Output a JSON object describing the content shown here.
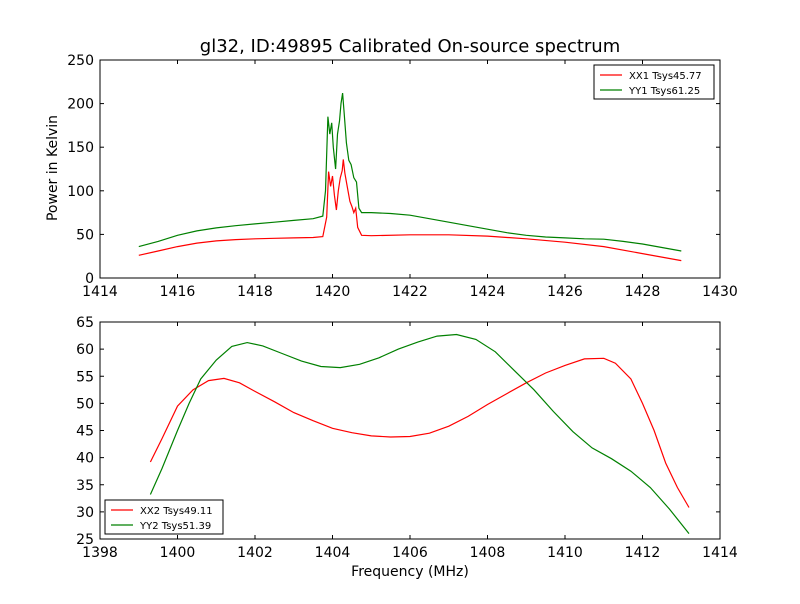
{
  "chart_data": [
    {
      "type": "line",
      "title": "gl32, ID:49895 Calibrated On-source spectrum",
      "xlabel": "",
      "ylabel": "Power in Kelvin",
      "xlim": [
        1414,
        1430
      ],
      "ylim": [
        0,
        250
      ],
      "xticks": [
        1414,
        1416,
        1418,
        1420,
        1422,
        1424,
        1426,
        1428,
        1430
      ],
      "yticks": [
        0,
        50,
        100,
        150,
        200,
        250
      ],
      "legend_position": "top-right",
      "series": [
        {
          "name": "XX1 Tsys45.77",
          "color": "#ff0000",
          "points": [
            [
              1415.0,
              26
            ],
            [
              1415.5,
              31
            ],
            [
              1416.0,
              36
            ],
            [
              1416.5,
              40
            ],
            [
              1417.0,
              42.5
            ],
            [
              1417.5,
              44
            ],
            [
              1418.0,
              45
            ],
            [
              1418.5,
              45.5
            ],
            [
              1419.0,
              46
            ],
            [
              1419.5,
              46.5
            ],
            [
              1419.75,
              47.5
            ],
            [
              1419.85,
              70
            ],
            [
              1419.9,
              122
            ],
            [
              1419.95,
              105
            ],
            [
              1420.0,
              117
            ],
            [
              1420.05,
              95
            ],
            [
              1420.1,
              78
            ],
            [
              1420.15,
              100
            ],
            [
              1420.2,
              115
            ],
            [
              1420.25,
              123
            ],
            [
              1420.28,
              136
            ],
            [
              1420.32,
              120
            ],
            [
              1420.38,
              105
            ],
            [
              1420.45,
              88
            ],
            [
              1420.5,
              82
            ],
            [
              1420.55,
              75
            ],
            [
              1420.6,
              80
            ],
            [
              1420.65,
              58
            ],
            [
              1420.75,
              49
            ],
            [
              1421.0,
              48.5
            ],
            [
              1422.0,
              49.5
            ],
            [
              1423.0,
              49.5
            ],
            [
              1424.0,
              48
            ],
            [
              1425.0,
              45
            ],
            [
              1426.0,
              41
            ],
            [
              1427.0,
              36
            ],
            [
              1428.0,
              28
            ],
            [
              1429.0,
              20
            ]
          ]
        },
        {
          "name": "YY1 Tsys61.25",
          "color": "#008000",
          "points": [
            [
              1415.0,
              36
            ],
            [
              1415.5,
              42
            ],
            [
              1416.0,
              49
            ],
            [
              1416.5,
              54
            ],
            [
              1417.0,
              57.5
            ],
            [
              1417.5,
              60
            ],
            [
              1418.0,
              62
            ],
            [
              1418.5,
              64
            ],
            [
              1419.0,
              66
            ],
            [
              1419.5,
              68
            ],
            [
              1419.75,
              71
            ],
            [
              1419.82,
              100
            ],
            [
              1419.88,
              185
            ],
            [
              1419.93,
              165
            ],
            [
              1419.98,
              178
            ],
            [
              1420.02,
              150
            ],
            [
              1420.08,
              125
            ],
            [
              1420.13,
              165
            ],
            [
              1420.18,
              180
            ],
            [
              1420.22,
              200
            ],
            [
              1420.26,
              212
            ],
            [
              1420.3,
              190
            ],
            [
              1420.36,
              155
            ],
            [
              1420.42,
              135
            ],
            [
              1420.48,
              130
            ],
            [
              1420.55,
              115
            ],
            [
              1420.62,
              110
            ],
            [
              1420.68,
              80
            ],
            [
              1420.75,
              75
            ],
            [
              1421.0,
              75
            ],
            [
              1421.5,
              74
            ],
            [
              1422.0,
              72
            ],
            [
              1422.5,
              68
            ],
            [
              1423.0,
              64
            ],
            [
              1423.5,
              60
            ],
            [
              1424.0,
              56
            ],
            [
              1424.5,
              52
            ],
            [
              1425.0,
              49
            ],
            [
              1425.5,
              47
            ],
            [
              1426.0,
              46
            ],
            [
              1426.5,
              45
            ],
            [
              1427.0,
              44.5
            ],
            [
              1427.5,
              42
            ],
            [
              1428.0,
              39
            ],
            [
              1428.5,
              35
            ],
            [
              1429.0,
              31
            ]
          ]
        }
      ]
    },
    {
      "type": "line",
      "title": "",
      "xlabel": "Frequency (MHz)",
      "ylabel": "",
      "xlim": [
        1398,
        1414
      ],
      "ylim": [
        25,
        65
      ],
      "xticks": [
        1398,
        1400,
        1402,
        1404,
        1406,
        1408,
        1410,
        1412,
        1414
      ],
      "yticks": [
        25,
        30,
        35,
        40,
        45,
        50,
        55,
        60,
        65
      ],
      "legend_position": "bottom-left",
      "series": [
        {
          "name": "XX2 Tsys49.11",
          "color": "#ff0000",
          "points": [
            [
              1399.3,
              39.2
            ],
            [
              1399.6,
              43.5
            ],
            [
              1400.0,
              49.5
            ],
            [
              1400.4,
              52.5
            ],
            [
              1400.8,
              54.2
            ],
            [
              1401.2,
              54.6
            ],
            [
              1401.6,
              53.8
            ],
            [
              1402.0,
              52.2
            ],
            [
              1402.5,
              50.3
            ],
            [
              1403.0,
              48.3
            ],
            [
              1403.5,
              46.8
            ],
            [
              1404.0,
              45.4
            ],
            [
              1404.5,
              44.6
            ],
            [
              1405.0,
              44.0
            ],
            [
              1405.5,
              43.8
            ],
            [
              1406.0,
              43.9
            ],
            [
              1406.5,
              44.5
            ],
            [
              1407.0,
              45.8
            ],
            [
              1407.5,
              47.6
            ],
            [
              1408.0,
              49.8
            ],
            [
              1408.5,
              51.8
            ],
            [
              1409.0,
              53.8
            ],
            [
              1409.5,
              55.6
            ],
            [
              1410.0,
              57.0
            ],
            [
              1410.5,
              58.2
            ],
            [
              1411.0,
              58.3
            ],
            [
              1411.3,
              57.4
            ],
            [
              1411.7,
              54.5
            ],
            [
              1412.0,
              50.0
            ],
            [
              1412.3,
              45.0
            ],
            [
              1412.6,
              39.0
            ],
            [
              1412.9,
              34.5
            ],
            [
              1413.2,
              30.8
            ]
          ]
        },
        {
          "name": "YY2 Tsys51.39",
          "color": "#008000",
          "points": [
            [
              1399.3,
              33.2
            ],
            [
              1399.6,
              38.0
            ],
            [
              1400.0,
              45.0
            ],
            [
              1400.3,
              50.0
            ],
            [
              1400.6,
              54.5
            ],
            [
              1401.0,
              58.0
            ],
            [
              1401.4,
              60.5
            ],
            [
              1401.8,
              61.2
            ],
            [
              1402.2,
              60.6
            ],
            [
              1402.7,
              59.2
            ],
            [
              1403.2,
              57.8
            ],
            [
              1403.7,
              56.8
            ],
            [
              1404.2,
              56.6
            ],
            [
              1404.7,
              57.2
            ],
            [
              1405.2,
              58.4
            ],
            [
              1405.7,
              60.0
            ],
            [
              1406.2,
              61.3
            ],
            [
              1406.7,
              62.4
            ],
            [
              1407.2,
              62.7
            ],
            [
              1407.7,
              61.8
            ],
            [
              1408.2,
              59.5
            ],
            [
              1408.7,
              56.0
            ],
            [
              1409.2,
              52.5
            ],
            [
              1409.7,
              48.5
            ],
            [
              1410.2,
              44.8
            ],
            [
              1410.7,
              41.8
            ],
            [
              1411.2,
              39.8
            ],
            [
              1411.7,
              37.5
            ],
            [
              1412.2,
              34.5
            ],
            [
              1412.7,
              30.5
            ],
            [
              1413.2,
              26.0
            ]
          ]
        }
      ]
    }
  ]
}
